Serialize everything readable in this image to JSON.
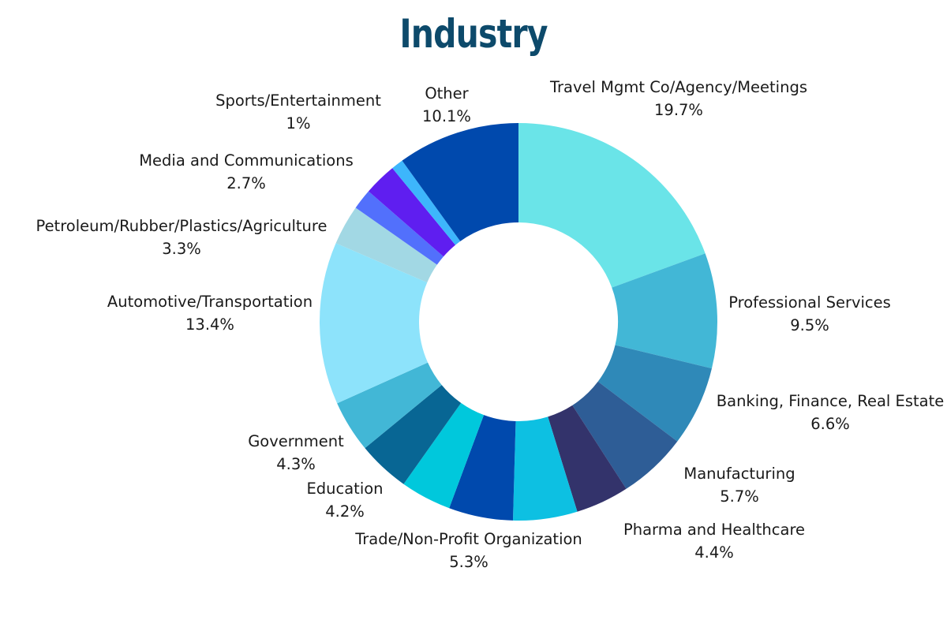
{
  "chart_data": {
    "type": "pie",
    "title": "Industry",
    "donut": true,
    "slices": [
      {
        "label": "Travel Mgmt Co/Agency/Meetings",
        "value": 19.7,
        "display": "19.7%",
        "color": "#6ae4e8"
      },
      {
        "label": "Professional Services",
        "value": 9.5,
        "display": "9.5%",
        "color": "#42b7d6"
      },
      {
        "label": "Banking, Finance, Real Estate",
        "value": 6.6,
        "display": "6.6%",
        "color": "#2f89b8"
      },
      {
        "label": "Manufacturing",
        "value": 5.7,
        "display": "5.7%",
        "color": "#2e5d96"
      },
      {
        "label": "Pharma and Healthcare",
        "value": 4.4,
        "display": "4.4%",
        "color": "#33336b"
      },
      {
        "label": "Trade/Non-Profit Organization",
        "value": 5.3,
        "display": "5.3%",
        "color": "#0dc0e2"
      },
      {
        "label": "",
        "value": 5.3,
        "display": "",
        "color": "#0049ad"
      },
      {
        "label": "Education",
        "value": 4.2,
        "display": "4.2%",
        "color": "#00c8dc"
      },
      {
        "label": "Government",
        "value": 4.3,
        "display": "4.3%",
        "color": "#086694"
      },
      {
        "label": "",
        "value": 4.3,
        "display": "",
        "color": "#42b7d6"
      },
      {
        "label": "Automotive/Transportation",
        "value": 13.4,
        "display": "13.4%",
        "color": "#8de3fb"
      },
      {
        "label": "Petroleum/Rubber/Plastics/Agriculture",
        "value": 3.3,
        "display": "3.3%",
        "color": "#a2d8e4"
      },
      {
        "label": "",
        "value": 1.7,
        "display": "",
        "color": "#5270fc"
      },
      {
        "label": "Media and Communications",
        "value": 2.7,
        "display": "2.7%",
        "color": "#5f1ef0"
      },
      {
        "label": "Sports/Entertainment",
        "value": 1.0,
        "display": "1%",
        "color": "#3db6fc"
      },
      {
        "label": "Other",
        "value": 10.1,
        "display": "10.1%",
        "color": "#0049ad"
      }
    ]
  }
}
